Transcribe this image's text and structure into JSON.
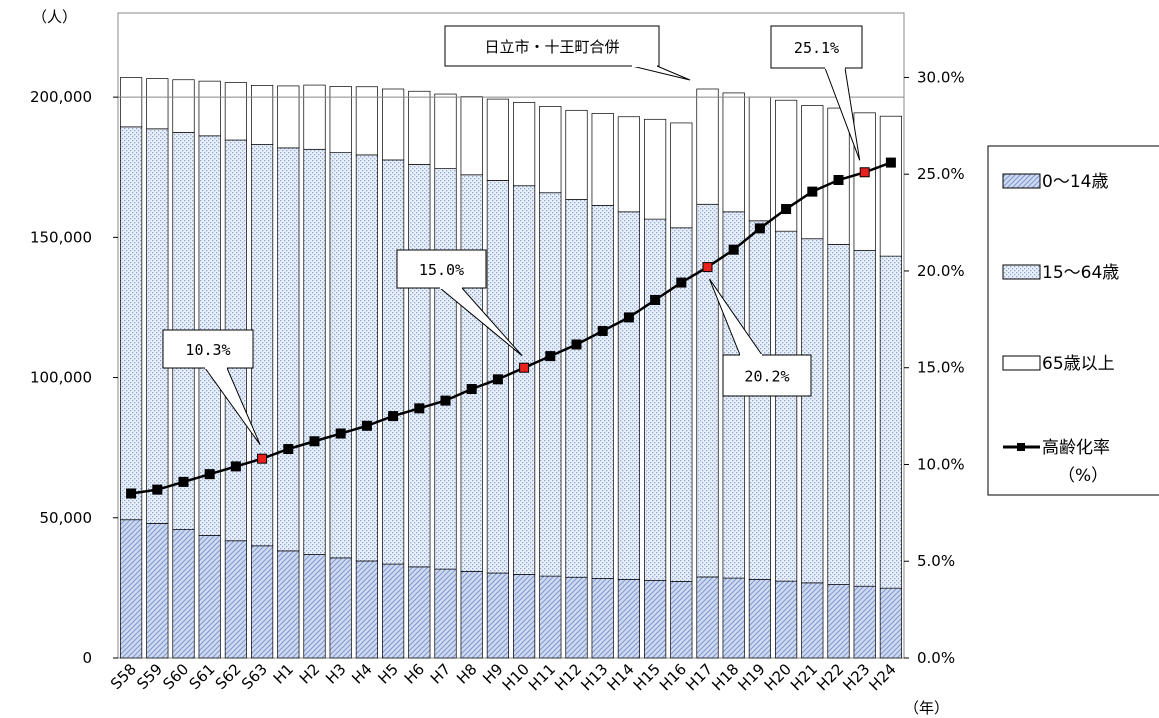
{
  "chart_data": {
    "type": "bar",
    "stacked": true,
    "categories": [
      "S58",
      "S59",
      "S60",
      "S61",
      "S62",
      "S63",
      "H1",
      "H2",
      "H3",
      "H4",
      "H5",
      "H6",
      "H7",
      "H8",
      "H9",
      "H10",
      "H11",
      "H12",
      "H13",
      "H14",
      "H15",
      "H16",
      "H17",
      "H18",
      "H19",
      "H20",
      "H21",
      "H22",
      "H23",
      "H24"
    ],
    "series": [
      {
        "name": "0〜14歳",
        "pattern": "diagonal-hatch",
        "color": "#8fa9d9",
        "values": [
          49300,
          48000,
          45800,
          43700,
          41800,
          40000,
          38200,
          36900,
          35700,
          34600,
          33500,
          32500,
          31700,
          30900,
          30300,
          29800,
          29200,
          28800,
          28400,
          28000,
          27700,
          27300,
          28900,
          28500,
          28000,
          27400,
          26800,
          26200,
          25600,
          24900
        ]
      },
      {
        "name": "15〜64歳",
        "pattern": "dots",
        "color": "#9eb3da",
        "values": [
          140100,
          140700,
          141600,
          142500,
          142900,
          143100,
          143700,
          144500,
          144500,
          144800,
          144100,
          143500,
          142800,
          141400,
          140000,
          138600,
          136700,
          134700,
          133000,
          131100,
          128800,
          126100,
          132900,
          130600,
          127900,
          124800,
          122700,
          121300,
          119700,
          118400
        ]
      },
      {
        "name": "65歳以上",
        "pattern": "plain",
        "color": "#ffffff",
        "values": [
          17600,
          17900,
          18800,
          19500,
          20500,
          21100,
          22100,
          22900,
          23600,
          24300,
          25300,
          26100,
          26600,
          27900,
          29000,
          29700,
          30800,
          31800,
          32800,
          33900,
          35600,
          37400,
          41100,
          42400,
          44100,
          46700,
          47500,
          48600,
          49100,
          49900
        ]
      },
      {
        "name": "高齢化率（%）",
        "axis": "right",
        "type": "line",
        "color": "#000000",
        "values": [
          8.5,
          8.7,
          9.1,
          9.5,
          9.9,
          10.3,
          10.8,
          11.2,
          11.6,
          12.0,
          12.5,
          12.9,
          13.3,
          13.9,
          14.4,
          15.0,
          15.6,
          16.2,
          16.9,
          17.6,
          18.5,
          19.4,
          20.2,
          21.1,
          22.2,
          23.2,
          24.1,
          24.7,
          25.1,
          25.6
        ]
      }
    ],
    "highlight_points": [
      5,
      15,
      22,
      28
    ],
    "y_left": {
      "unit": "（人）",
      "ylim": [
        0,
        230000
      ],
      "ticks": [
        "0",
        "50,000",
        "100,000",
        "150,000",
        "200,000"
      ],
      "tick_values": [
        0,
        50000,
        100000,
        150000,
        200000
      ]
    },
    "y_right": {
      "ylim": [
        0,
        33.33
      ],
      "ticks": [
        "0.0%",
        "5.0%",
        "10.0%",
        "15.0%",
        "20.0%",
        "25.0%",
        "30.0%"
      ],
      "tick_values": [
        0,
        5,
        10,
        15,
        20,
        25,
        30
      ]
    },
    "x_unit": "（年）",
    "reference_line": 200000,
    "annotations": [
      {
        "text": "10.3%",
        "point": 5,
        "box": "left-above"
      },
      {
        "text": "15.0%",
        "point": 15,
        "box": "left-above"
      },
      {
        "text": "20.2%",
        "point": 22,
        "box": "right-below"
      },
      {
        "text": "25.1%",
        "point": 28,
        "box": "above"
      },
      {
        "text": "日立市・十王町合併",
        "point": 22,
        "box": "callout"
      }
    ],
    "legend": [
      {
        "label": "0〜14歳",
        "kind": "hatch"
      },
      {
        "label": "15〜64歳",
        "kind": "dots"
      },
      {
        "label": "65歳以上",
        "kind": "plain"
      },
      {
        "label": "高齢化率",
        "sub": "（%）",
        "kind": "line"
      }
    ],
    "legend_position": "right"
  }
}
